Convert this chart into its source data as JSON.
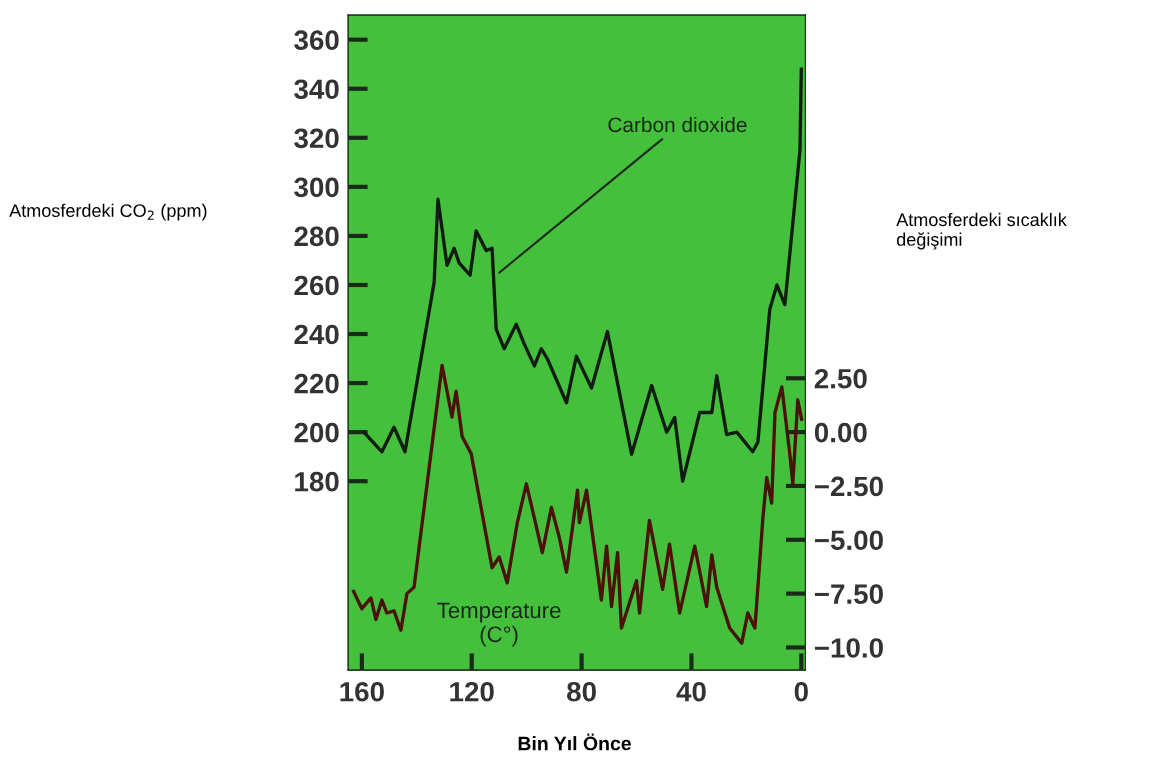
{
  "chart_data": {
    "type": "line",
    "xlabel": "Bin Yıl Önce",
    "ylabel": "Atmosferdeki CO$_{2}$ (ppm)",
    "y2label": "Atmosferdeki sıcaklık\ndeğişimi",
    "xlim": [
      165,
      -1.5
    ],
    "xticks": [
      160,
      120,
      80,
      40,
      0
    ],
    "ylim": [
      103,
      370
    ],
    "yticks": [
      180,
      200,
      220,
      240,
      260,
      280,
      300,
      320,
      340,
      360
    ],
    "y2lim": [
      -11.05,
      19.36
    ],
    "y2ticks": [
      {
        "value": 2.5,
        "label": "2.50"
      },
      {
        "value": 0,
        "label": "0.00"
      },
      {
        "value": -2.5,
        "label": "−2.50"
      },
      {
        "value": -5,
        "label": "−5.00"
      },
      {
        "value": -7.5,
        "label": "−7.50"
      },
      {
        "value": -10,
        "label": "−10.0"
      }
    ],
    "grid": false,
    "legend": false,
    "marker": "none",
    "line_style": "solid",
    "series": [
      {
        "color": "#101c10",
        "x": [
          159.3,
          152.7,
          148.3,
          144.3,
          133.7,
          132.3,
          129,
          126.4,
          124.6,
          120.6,
          118.4,
          114.7,
          112.6,
          111.1,
          108.2,
          103.8,
          100.9,
          97.2,
          94.7,
          92.5,
          85.5,
          81.9,
          76.4,
          70.6,
          61.8,
          54.5,
          49,
          46.1,
          43.2,
          37,
          32.6,
          30.8,
          27.2,
          23.5,
          17.7,
          15.8,
          11.5,
          8.9,
          6,
          0.5,
          0
        ],
        "values": [
          200,
          192,
          202,
          192,
          261,
          295,
          268,
          275,
          269,
          264,
          282,
          274,
          275,
          242,
          234,
          244,
          236,
          227,
          234,
          230,
          212,
          231,
          218,
          241,
          191,
          219,
          200,
          206,
          180,
          208,
          208,
          223,
          199,
          200,
          192,
          196,
          250,
          260,
          252,
          315,
          348
        ]
      },
      {
        "color": "#4a1208",
        "axis": "y2",
        "x": [
          163,
          160,
          156.7,
          154.9,
          152.7,
          150.9,
          148.3,
          145.8,
          143.6,
          141,
          130.8,
          127.2,
          125.7,
          123.5,
          120.2,
          112.6,
          110,
          107.1,
          103.4,
          100.1,
          94.3,
          91,
          88.1,
          85.5,
          81.5,
          80.8,
          78.2,
          72.8,
          70.9,
          69.1,
          66.9,
          65.5,
          60,
          58.9,
          55.3,
          50.5,
          48,
          44.3,
          38.8,
          34.5,
          32.6,
          30.8,
          26.1,
          21.7,
          19.5,
          16.9,
          14,
          12.6,
          10.8,
          9.6,
          7.1,
          4.2,
          3.1,
          1.3,
          -0.1
        ],
        "values": [
          -7.4,
          -8.2,
          -7.7,
          -8.7,
          -7.8,
          -8.4,
          -8.3,
          -9.2,
          -7.5,
          -7.2,
          3.1,
          0.7,
          1.9,
          -0.2,
          -1,
          -6.3,
          -5.8,
          -7,
          -4.2,
          -2.4,
          -5.6,
          -3.5,
          -4.9,
          -6.5,
          -2.7,
          -4.2,
          -2.7,
          -7.8,
          -5.3,
          -8.1,
          -5.6,
          -9.1,
          -6.9,
          -8.4,
          -4.1,
          -7.3,
          -5.2,
          -8.4,
          -5.3,
          -8.1,
          -5.7,
          -7.2,
          -9.1,
          -9.8,
          -8.4,
          -9.1,
          -4,
          -2.1,
          -3.3,
          0.9,
          2.1,
          -1,
          -2.4,
          1.5,
          0.6
        ]
      }
    ],
    "annotations": [
      {
        "text": "Carbon dioxide",
        "x": 110,
        "y": 265
      },
      "Temperature\n(C°)"
    ]
  }
}
